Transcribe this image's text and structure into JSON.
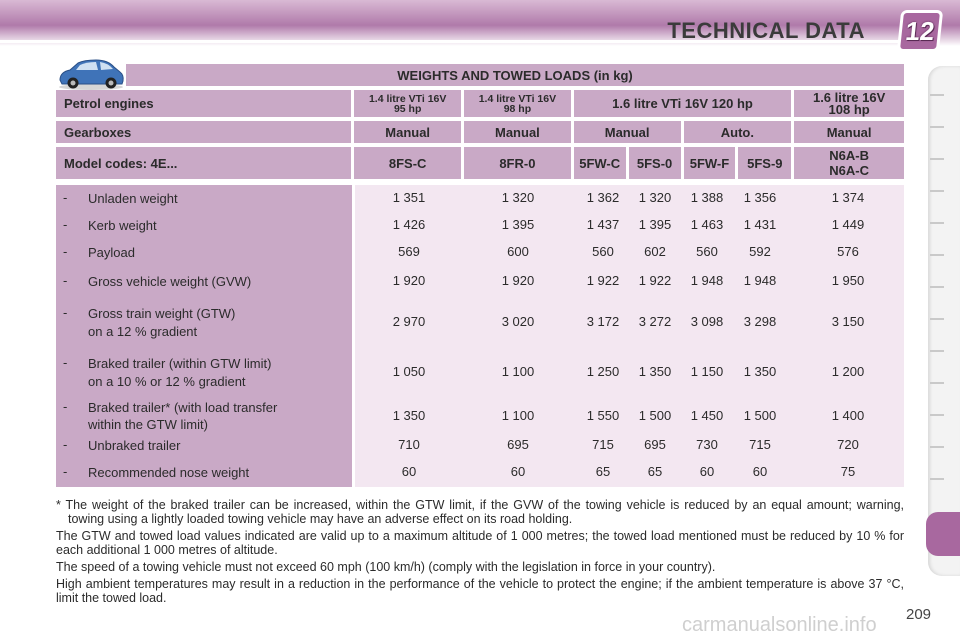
{
  "header": {
    "title": "TECHNICAL DATA",
    "chapter": "12"
  },
  "table": {
    "caption": "WEIGHTS AND TOWED LOADS (in kg)",
    "petrol_label": "Petrol engines",
    "engines": [
      {
        "line1": "1.4 litre VTi 16V",
        "line2": "95 hp"
      },
      {
        "line1": "1.4 litre VTi 16V",
        "line2": "98 hp"
      },
      {
        "line1": "1.6 litre VTi 16V 120 hp"
      },
      {
        "line1": "1.6 litre 16V",
        "line2": "108 hp"
      }
    ],
    "gearbox_label": "Gearboxes",
    "gearboxes": [
      "Manual",
      "Manual",
      "Manual",
      "Auto.",
      "Manual"
    ],
    "model_label": "Model codes: 4E...",
    "models": [
      "8FS-C",
      "8FR-0",
      "5FW-C",
      "5FS-0",
      "5FW-F",
      "5FS-9",
      "N6A-B",
      "N6A-C"
    ],
    "rows": [
      {
        "label": "Unladen weight",
        "values": [
          "1 351",
          "1 320",
          "1 362",
          "1 320",
          "1 388",
          "1 356",
          "1 374"
        ]
      },
      {
        "label": "Kerb weight",
        "values": [
          "1 426",
          "1 395",
          "1 437",
          "1 395",
          "1 463",
          "1 431",
          "1 449"
        ]
      },
      {
        "label": "Payload",
        "values": [
          "569",
          "600",
          "560",
          "602",
          "560",
          "592",
          "576"
        ]
      },
      {
        "label": "Gross vehicle weight (GVW)",
        "values": [
          "1 920",
          "1 920",
          "1 922",
          "1 922",
          "1 948",
          "1 948",
          "1 950"
        ]
      },
      {
        "label": "Gross train weight (GTW)",
        "label2": "on a 12 % gradient",
        "values": [
          "2 970",
          "3 020",
          "3 172",
          "3 272",
          "3 098",
          "3 298",
          "3 150"
        ]
      },
      {
        "label": "Braked trailer (within GTW limit)",
        "label2": "on a 10 % or 12 % gradient",
        "values": [
          "1 050",
          "1 100",
          "1 250",
          "1 350",
          "1 150",
          "1 350",
          "1 200"
        ]
      },
      {
        "label": "Braked trailer* (with load transfer",
        "label2": "within the GTW limit)",
        "values": [
          "1 350",
          "1 100",
          "1 550",
          "1 500",
          "1 450",
          "1 500",
          "1 400"
        ]
      },
      {
        "label": "Unbraked trailer",
        "values": [
          "710",
          "695",
          "715",
          "695",
          "730",
          "715",
          "720"
        ]
      },
      {
        "label": "Recommended nose weight",
        "values": [
          "60",
          "60",
          "65",
          "65",
          "60",
          "60",
          "75"
        ]
      }
    ],
    "dash": "-"
  },
  "notes": [
    "* The weight of the braked trailer can be increased, within the GTW limit, if the GVW of the towing vehicle is reduced by an equal amount; warning, towing using a lightly loaded towing vehicle may have an adverse effect on its road holding.",
    "The GTW and towed load values indicated are valid up to a maximum altitude of 1 000 metres; the towed load mentioned must be reduced by 10 % for each additional 1 000 metres of altitude.",
    "The speed of a towing vehicle must not exceed 60 mph (100 km/h) (comply with the legislation in force in your country).",
    "High ambient temperatures may result in a reduction in the performance of the vehicle to protect the engine; if the ambient temperature is above 37 °C, limit the towed load."
  ],
  "page_number": "209",
  "watermark": "carmanualsonline.info",
  "colors": {
    "accent": "#a8689f",
    "header_cell": "#c9a9c6",
    "value_bg": "#f3e7f1"
  },
  "icons": [
    "car-icon",
    "chapter-badge"
  ]
}
